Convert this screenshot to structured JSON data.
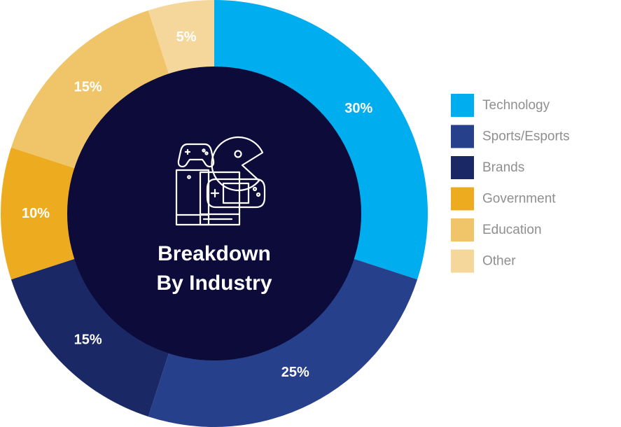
{
  "chart_data": {
    "type": "pie",
    "variant": "donut",
    "title": "Breakdown By Industry",
    "title_lines": [
      "Breakdown",
      "By Industry"
    ],
    "slices": [
      {
        "label": "Technology",
        "value": 30,
        "display": "30%",
        "color": "#00adee"
      },
      {
        "label": "Sports/Esports",
        "value": 25,
        "display": "25%",
        "color": "#27408b"
      },
      {
        "label": "Brands",
        "value": 15,
        "display": "15%",
        "color": "#1a2865"
      },
      {
        "label": "Government",
        "value": 10,
        "display": "10%",
        "color": "#edab20"
      },
      {
        "label": "Education",
        "value": 15,
        "display": "15%",
        "color": "#f0c569"
      },
      {
        "label": "Other",
        "value": 5,
        "display": "5%",
        "color": "#f5d79b"
      }
    ],
    "center_color": "#0c0b3a",
    "center_icon": "gaming-consoles-icon",
    "legend_position": "right"
  }
}
